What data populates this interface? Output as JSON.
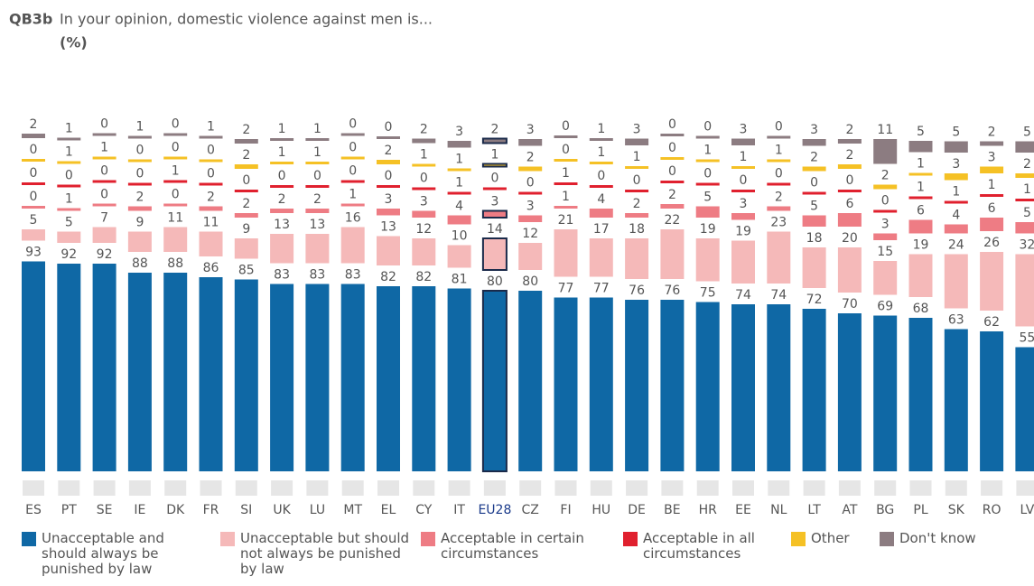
{
  "chart_data": {
    "type": "bar",
    "stacking": "separated",
    "title_code": "QB3b",
    "title": "In your opinion, domestic violence against men is...",
    "subtitle": "(%)",
    "categories": [
      "ES",
      "PT",
      "SE",
      "IE",
      "DK",
      "FR",
      "SI",
      "UK",
      "LU",
      "MT",
      "EL",
      "CY",
      "IT",
      "EU28",
      "CZ",
      "FI",
      "HU",
      "DE",
      "BE",
      "HR",
      "EE",
      "NL",
      "LT",
      "AT",
      "BG",
      "PL",
      "SK",
      "RO",
      "LV"
    ],
    "highlight": "EU28",
    "series": [
      {
        "name": "Unacceptable and should always be punished by law",
        "color": "#0f68a5",
        "values": [
          93,
          92,
          92,
          88,
          88,
          86,
          85,
          83,
          83,
          83,
          82,
          82,
          81,
          80,
          80,
          77,
          77,
          76,
          76,
          75,
          74,
          74,
          72,
          70,
          69,
          68,
          63,
          62,
          55
        ]
      },
      {
        "name": "Unacceptable but should not always be punished by law",
        "color": "#f5b9b9",
        "values": [
          5,
          5,
          7,
          9,
          11,
          11,
          9,
          13,
          13,
          16,
          13,
          12,
          10,
          14,
          12,
          21,
          17,
          18,
          22,
          19,
          19,
          23,
          18,
          20,
          15,
          19,
          24,
          26,
          32
        ]
      },
      {
        "name": "Acceptable in certain circumstances",
        "color": "#ee7c84",
        "values": [
          0,
          1,
          0,
          2,
          0,
          2,
          2,
          2,
          2,
          1,
          3,
          3,
          4,
          3,
          3,
          1,
          4,
          2,
          2,
          5,
          3,
          2,
          5,
          6,
          3,
          6,
          4,
          6,
          5
        ]
      },
      {
        "name": "Acceptable in all circumstances",
        "color": "#e0202e",
        "values": [
          0,
          0,
          0,
          0,
          1,
          0,
          0,
          0,
          0,
          0,
          0,
          0,
          1,
          0,
          0,
          1,
          0,
          0,
          0,
          0,
          0,
          0,
          0,
          0,
          0,
          1,
          1,
          1,
          1
        ]
      },
      {
        "name": "Other",
        "color": "#f5c125",
        "values": [
          0,
          1,
          1,
          0,
          0,
          0,
          2,
          1,
          1,
          0,
          2,
          1,
          1,
          1,
          2,
          0,
          1,
          1,
          0,
          1,
          1,
          1,
          2,
          2,
          2,
          1,
          3,
          3,
          2
        ]
      },
      {
        "name": "Don't know",
        "color": "#8c7c81",
        "values": [
          2,
          1,
          0,
          1,
          0,
          1,
          2,
          1,
          1,
          0,
          0,
          2,
          3,
          2,
          3,
          0,
          1,
          3,
          0,
          0,
          3,
          0,
          3,
          2,
          11,
          5,
          5,
          2,
          5
        ]
      }
    ]
  }
}
